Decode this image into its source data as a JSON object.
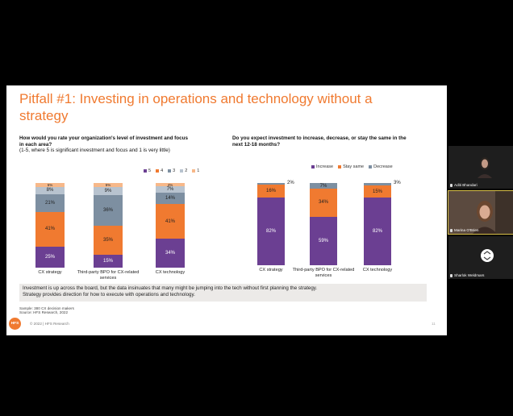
{
  "slide": {
    "title": "Pitfall #1: Investing in operations and technology without a strategy",
    "left_question": "How would you rate your organization's level of investment and focus in each area?",
    "left_question_sub": "(1-5, where 5 is significant investment and focus and 1 is very little)",
    "right_question": "Do you expect investment to increase, decrease, or stay the same in the next 12-18 months?",
    "note_line1": "Investment is up across the board, but the data insinuates that many might be jumping into the tech without first planning the strategy.",
    "note_line2": "Strategy provides direction for how to execute with operations and technology.",
    "source_line1": "Sample: 380 CX decision makers",
    "source_line2": "Source: HFS Research, 2022",
    "logo_text": "HFS",
    "copyright": "© 2022 | HFS Research",
    "page_number": "11"
  },
  "chart_data": [
    {
      "type": "bar",
      "stacked": true,
      "categories": [
        "CX strategy",
        "Third-party BPO for CX-related services",
        "CX technology"
      ],
      "legend": [
        "5",
        "4",
        "3",
        "2",
        "1"
      ],
      "series": [
        {
          "name": "5",
          "values": [
            25,
            15,
            34
          ],
          "labels": [
            "25%",
            "15%",
            "34%"
          ],
          "color": "#6b3f92"
        },
        {
          "name": "4",
          "values": [
            41,
            35,
            41
          ],
          "labels": [
            "41%",
            "35%",
            "41%"
          ],
          "color": "#f07a30"
        },
        {
          "name": "3",
          "values": [
            21,
            36,
            14
          ],
          "labels": [
            "21%",
            "36%",
            "14%"
          ],
          "color": "#7d8fa1"
        },
        {
          "name": "2",
          "values": [
            8,
            9,
            7
          ],
          "labels": [
            "8%",
            "9%",
            "7%"
          ],
          "color": "#b8c3cf"
        },
        {
          "name": "1",
          "values": [
            5,
            5,
            4
          ],
          "labels": [
            "5%",
            "5%",
            "4%"
          ],
          "color": "#f7b889"
        }
      ],
      "ylim": [
        0,
        100
      ]
    },
    {
      "type": "bar",
      "stacked": true,
      "categories": [
        "CX strategy",
        "Third-party BPO for CX-related services",
        "CX technology"
      ],
      "legend": [
        "Increase",
        "Stay same",
        "Decrease"
      ],
      "series": [
        {
          "name": "Increase",
          "values": [
            82,
            59,
            82
          ],
          "labels": [
            "82%",
            "59%",
            "82%"
          ],
          "color": "#6b3f92"
        },
        {
          "name": "Stay same",
          "values": [
            16,
            34,
            15
          ],
          "labels": [
            "16%",
            "34%",
            "15%"
          ],
          "color": "#f07a30"
        },
        {
          "name": "Decrease",
          "values": [
            2,
            7,
            3
          ],
          "labels": [
            "2%",
            "7%",
            "3%"
          ],
          "color": "#7d8fa1"
        }
      ],
      "ylim": [
        0,
        100
      ]
    }
  ],
  "participants": [
    {
      "name": "Aditi Bhandari"
    },
    {
      "name": "Marina O'Brien"
    },
    {
      "name": "Sharlok Weldmars"
    }
  ]
}
